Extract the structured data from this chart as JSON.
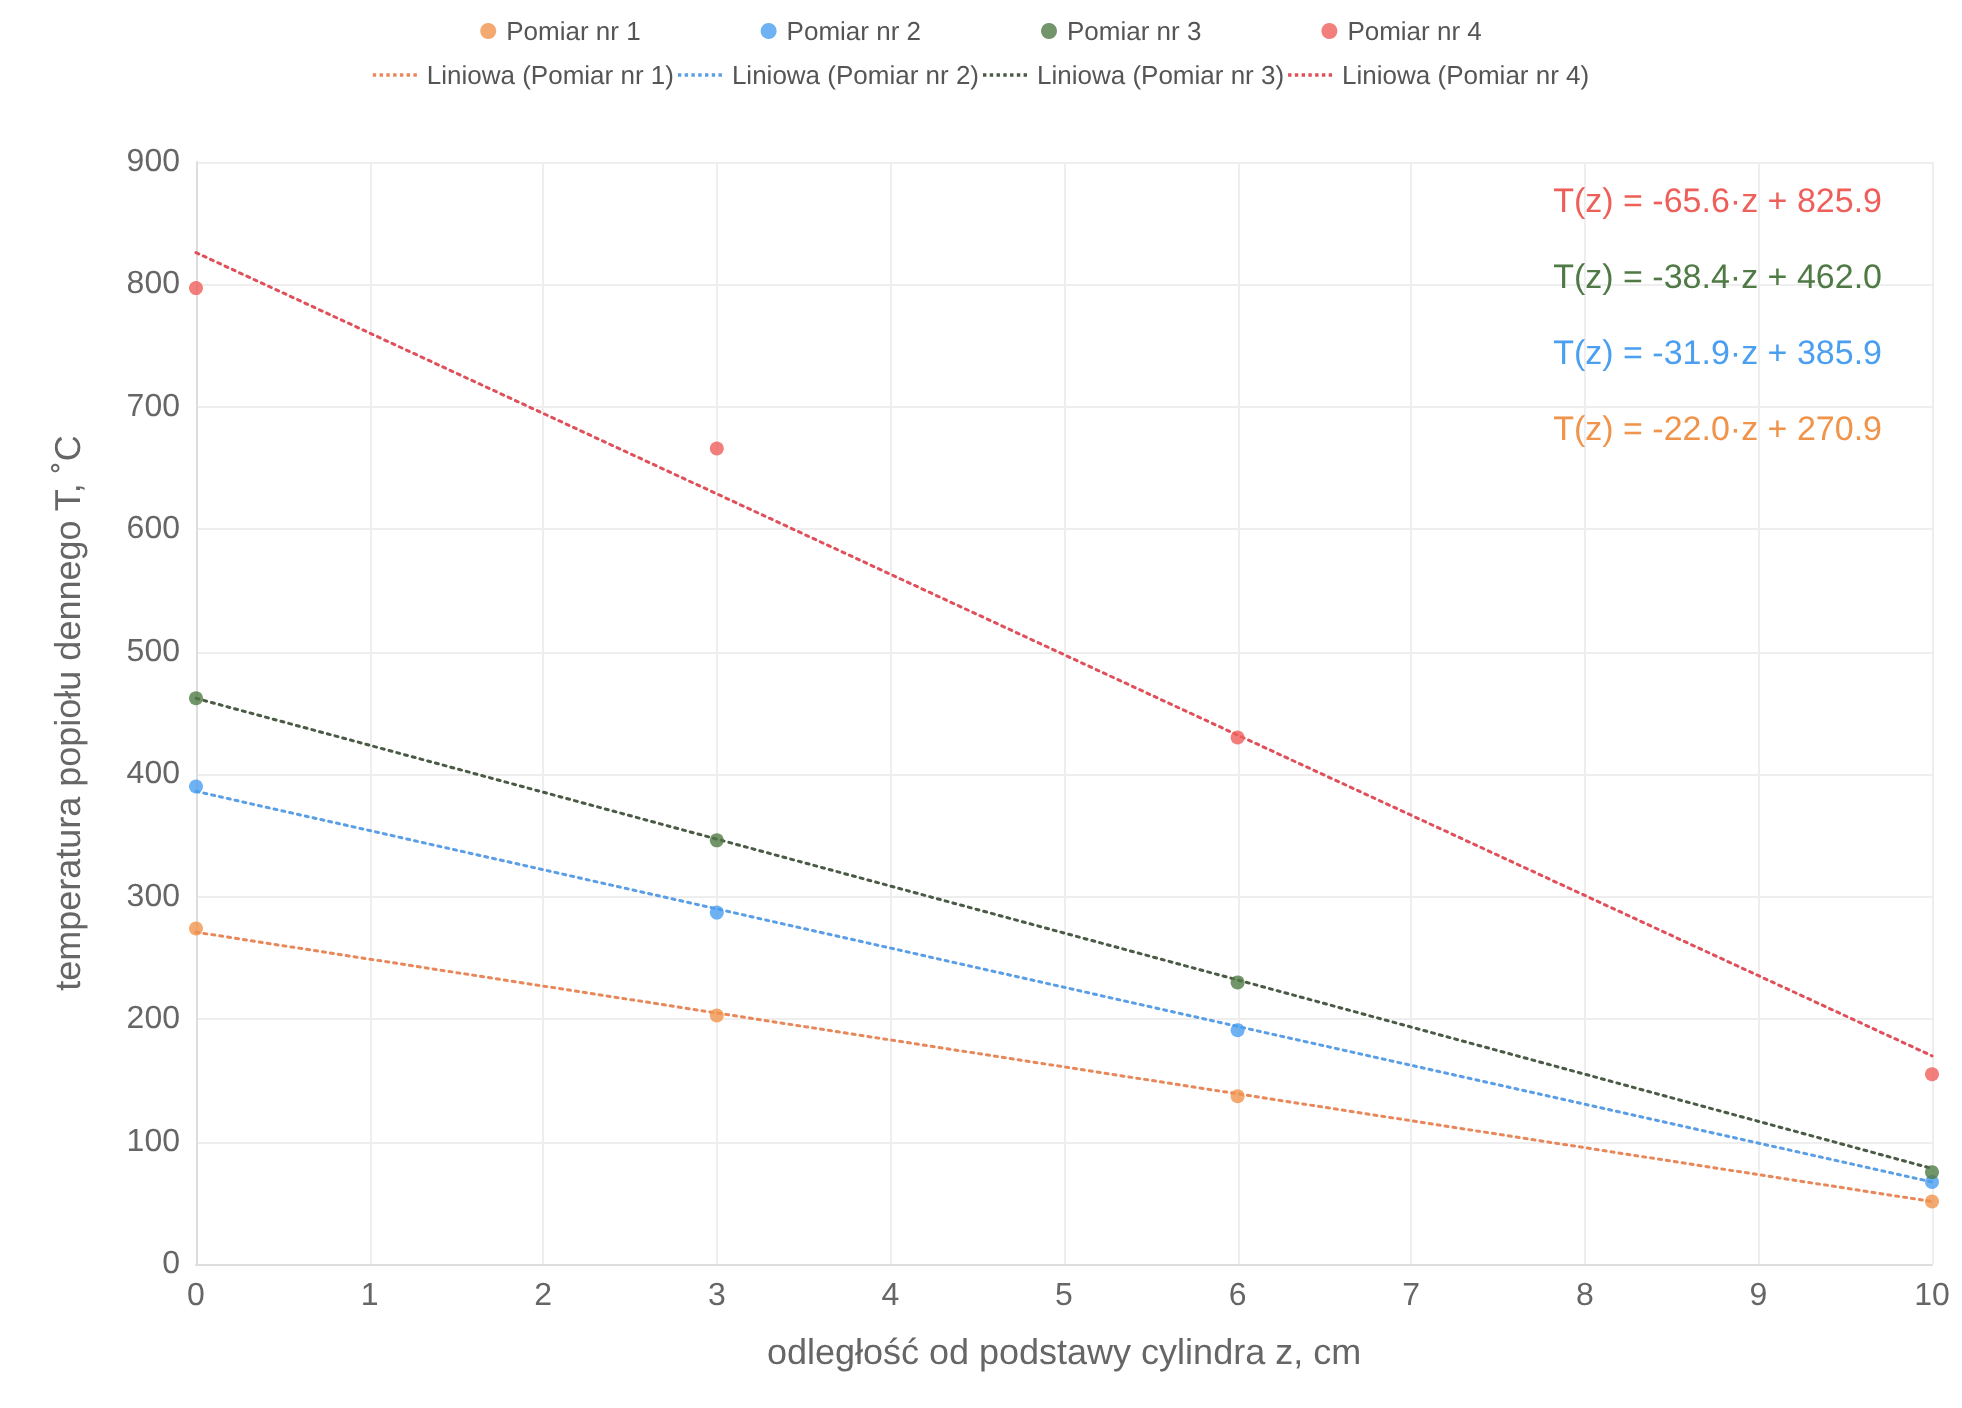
{
  "chart_data": {
    "type": "scatter",
    "xlabel": "odległość od podstawy cylindra z, cm",
    "ylabel": "temperatura popiołu dennego T, ˚C",
    "x": [
      0,
      3,
      6,
      10
    ],
    "series": [
      {
        "name": "Pomiar nr 1",
        "color": "#f0944b",
        "values": [
          274,
          203,
          137,
          51
        ]
      },
      {
        "name": "Pomiar nr 2",
        "color": "#4a9ff0",
        "values": [
          390,
          287,
          191,
          67
        ]
      },
      {
        "name": "Pomiar nr 3",
        "color": "#4f7a45",
        "values": [
          462,
          346,
          230,
          75
        ]
      },
      {
        "name": "Pomiar nr 4",
        "color": "#ef5f5a",
        "values": [
          797,
          666,
          430,
          155
        ]
      },
      {
        "name": "Liniowa (Pomiar nr 1)",
        "type": "line",
        "marker": "none",
        "line_style": "dotted",
        "color": "#e8885a",
        "values": [
          271,
          205,
          139,
          51
        ]
      },
      {
        "name": "Liniowa (Pomiar nr 2)",
        "type": "line",
        "marker": "none",
        "line_style": "dotted",
        "color": "#5a9ee6",
        "values": [
          386,
          290,
          194,
          67
        ]
      },
      {
        "name": "Liniowa (Pomiar nr 3)",
        "type": "line",
        "marker": "none",
        "line_style": "dotted",
        "color": "#4a5a45",
        "values": [
          462,
          347,
          232,
          78
        ]
      },
      {
        "name": "Liniowa (Pomiar nr 4)",
        "type": "line",
        "marker": "none",
        "line_style": "dotted",
        "color": "#e0505a",
        "values": [
          826,
          629,
          432,
          170
        ]
      }
    ],
    "annotations": [
      "T(z) = -65.6·z + 825.9",
      "T(z) = -38.4·z + 462.0",
      "T(z) = -31.9·z + 385.9",
      "T(z) = -22.0·z + 270.9"
    ],
    "xlim": [
      0,
      10
    ],
    "xticks": [
      0,
      1,
      2,
      3,
      4,
      5,
      6,
      7,
      8,
      9,
      10
    ],
    "ylim": [
      0,
      900
    ],
    "yticks": [
      0,
      100,
      200,
      300,
      400,
      500,
      600,
      700,
      800,
      900
    ],
    "grid": true,
    "legend": "top",
    "marker": "circle"
  }
}
